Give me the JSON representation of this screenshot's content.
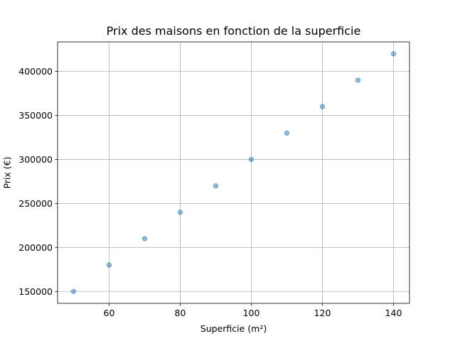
{
  "chart_data": {
    "type": "scatter",
    "title": "Prix des maisons en fonction de la superficie",
    "xlabel": "Superficie (m²)",
    "ylabel": "Prix (€)",
    "x": [
      50,
      60,
      70,
      80,
      90,
      100,
      110,
      120,
      130,
      140
    ],
    "y": [
      150000,
      180000,
      210000,
      240000,
      270000,
      300000,
      330000,
      360000,
      390000,
      420000
    ],
    "xlim": [
      45.5,
      144.5
    ],
    "ylim": [
      136500,
      433500
    ],
    "xticks": [
      60,
      80,
      100,
      120,
      140
    ],
    "yticks": [
      150000,
      200000,
      250000,
      300000,
      350000,
      400000
    ],
    "grid": true,
    "marker_color": "#1f77b4"
  }
}
